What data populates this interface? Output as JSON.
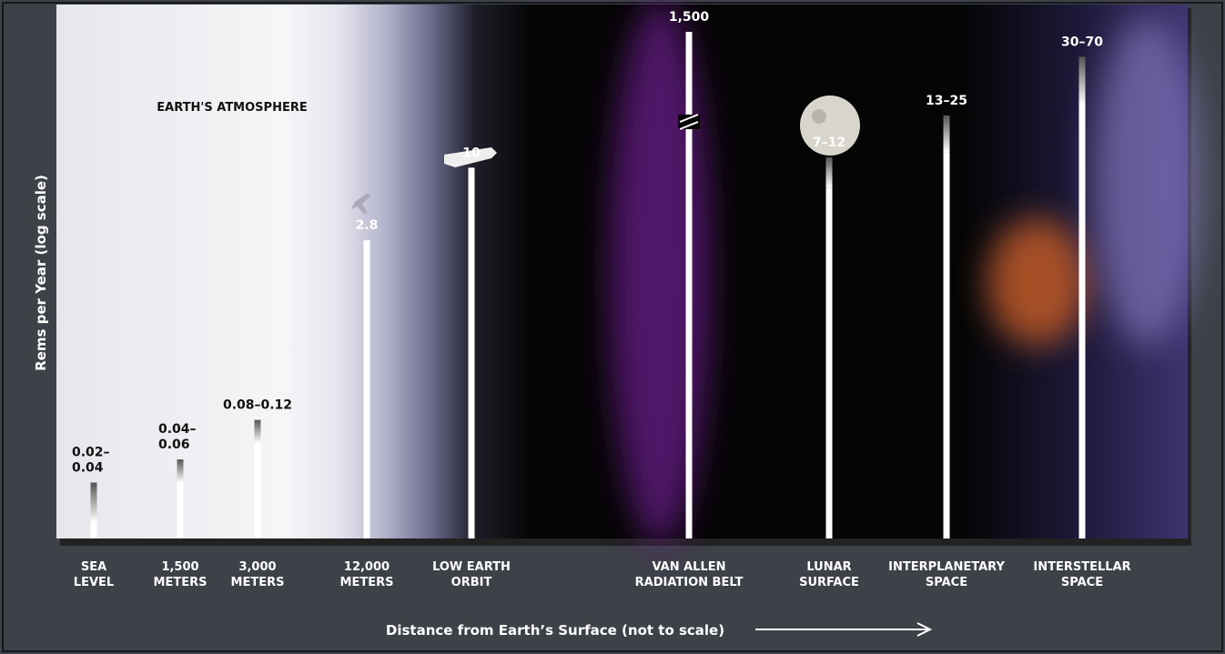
{
  "chart_data": {
    "type": "bar",
    "annotation": "EARTH'S ATMOSPHERE",
    "y_label": "Rems per Year (log scale)",
    "x_label": "Distance from Earth’s Surface (not to scale)",
    "categories": [
      "SEA\nLEVEL",
      "1,500\nMETERS",
      "3,000\nMETERS",
      "12,000\nMETERS",
      "LOW EARTH\nORBIT",
      "VAN ALLEN\nRADIATION BELT",
      "LUNAR\nSURFACE",
      "INTERPLANETARY\nSPACE",
      "INTERSTELLAR\nSPACE"
    ],
    "values": [
      0.02,
      0.04,
      0.08,
      2.8,
      10,
      1500,
      7,
      13,
      30
    ],
    "highs": [
      0.04,
      0.06,
      0.12,
      null,
      null,
      null,
      12,
      25,
      70
    ],
    "value_labels": [
      "0.02–\n0.04",
      "0.04–\n0.06",
      "0.08–0.12",
      "2.8",
      "10",
      "1,500",
      "7–12",
      "13–25",
      "30–70"
    ],
    "color": "#ffffff",
    "log_scale": true,
    "ylim": [
      0.015,
      100
    ]
  }
}
